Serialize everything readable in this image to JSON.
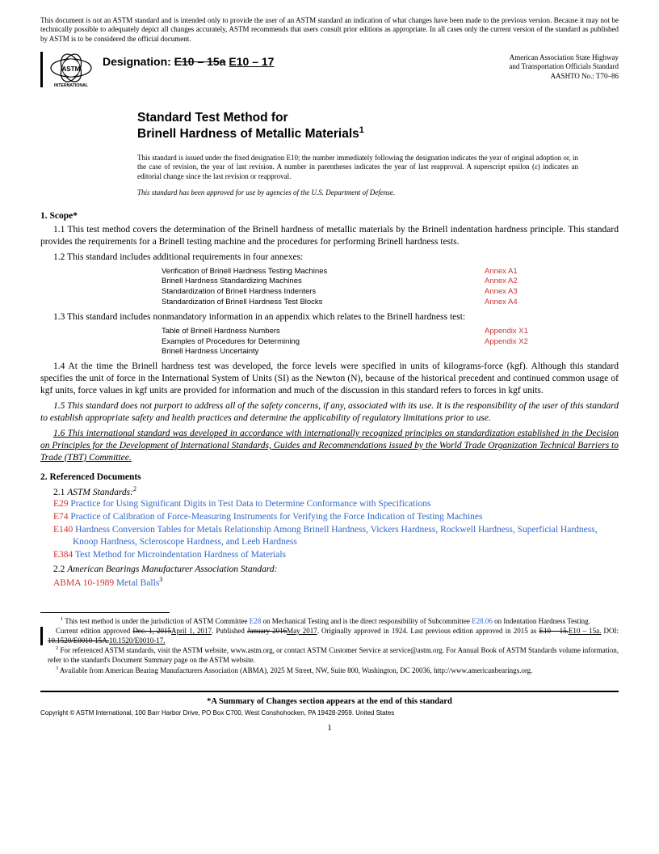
{
  "disclaimer": "This document is not an ASTM standard and is intended only to provide the user of an ASTM standard an indication of what changes have been made to the previous version. Because it may not be technically possible to adequately depict all changes accurately, ASTM recommends that users consult prior editions as appropriate. In all cases only the current version of the standard as published by ASTM is to be considered the official document.",
  "logo_text": "ASTM INTERNATIONAL",
  "designation_label": "Designation:",
  "designation_old": "E10 – 15a",
  "designation_new": "E10 – 17",
  "header_right_l1": "American Association State Highway",
  "header_right_l2": "and Transportation Officials Standard",
  "header_right_l3": "AASHTO No.: T70–86",
  "title_l1": "Standard Test Method for",
  "title_l2": "Brinell Hardness of Metallic Materials",
  "title_sup": "1",
  "issuance": "This standard is issued under the fixed designation E10; the number immediately following the designation indicates the year of original adoption or, in the case of revision, the year of last revision. A number in parentheses indicates the year of last reapproval. A superscript epsilon (ε) indicates an editorial change since the last revision or reapproval.",
  "approval": "This standard has been approved for use by agencies of the U.S. Department of Defense.",
  "s1_head": "1.  Scope*",
  "s1_1": "1.1 This test method covers the determination of the Brinell hardness of metallic materials by the Brinell indentation hardness principle. This standard provides the requirements for a Brinell testing machine and the procedures for performing Brinell hardness tests.",
  "s1_2": "1.2 This standard includes additional requirements in four annexes:",
  "annexes": [
    {
      "label": "Verification of Brinell Hardness Testing Machines",
      "link": "Annex A1"
    },
    {
      "label": "Brinell Hardness Standardizing Machines",
      "link": "Annex A2"
    },
    {
      "label": "Standardization of Brinell Hardness Indenters",
      "link": "Annex A3"
    },
    {
      "label": "Standardization of Brinell Hardness Test Blocks",
      "link": "Annex A4"
    }
  ],
  "s1_3": "1.3 This standard includes nonmandatory information in an appendix which relates to the Brinell hardness test:",
  "appendices": [
    {
      "label": "Table of Brinell Hardness Numbers",
      "link": "Appendix X1"
    },
    {
      "label": "Examples of Procedures for Determining Brinell Hardness Uncertainty",
      "link": "Appendix X2"
    }
  ],
  "s1_4": "1.4 At the time the Brinell hardness test was developed, the force levels were specified in units of kilograms-force (kgf). Although this standard specifies the unit of force in the International System of Units (SI) as the Newton (N), because of the historical precedent and continued common usage of kgf units, force values in kgf units are provided for information and much of the discussion in this standard refers to forces in kgf units.",
  "s1_5": "1.5 This standard does not purport to address all of the safety concerns, if any, associated with its use. It is the responsibility of the user of this standard to establish appropriate safety and health practices and determine the applicability of regulatory limitations prior to use.",
  "s1_6": "1.6 This international standard was developed in accordance with internationally recognized principles on standardization established in the Decision on Principles for the Development of International Standards, Guides and Recommendations issued by the World Trade Organization Technical Barriers to Trade (TBT) Committee.",
  "s2_head": "2.  Referenced Documents",
  "s2_1_label": "2.1 ",
  "s2_1_text": "ASTM Standards:",
  "s2_1_sup": "2",
  "refs": [
    {
      "code": "E29",
      "text": "Practice for Using Significant Digits in Test Data to Determine Conformance with Specifications"
    },
    {
      "code": "E74",
      "text": "Practice of Calibration of Force-Measuring Instruments for Verifying the Force Indication of Testing Machines"
    },
    {
      "code": "E140",
      "text": "Hardness Conversion Tables for Metals Relationship Among Brinell Hardness, Vickers Hardness, Rockwell Hardness, Superficial Hardness, Knoop Hardness, Scleroscope Hardness, and Leeb Hardness"
    },
    {
      "code": "E384",
      "text": "Test Method for Microindentation Hardness of Materials"
    }
  ],
  "s2_2_label": "2.2 ",
  "s2_2_text": "American Bearings Manufacturer Association Standard:",
  "abma_code": "ABMA 10-1989",
  "abma_text": "Metal Balls",
  "abma_sup": "3",
  "fn1_a": " This test method is under the jurisdiction of ASTM Committee ",
  "fn1_link1": "E28",
  "fn1_b": " on Mechanical Testing and is the direct responsibility of Subcommittee ",
  "fn1_link2": "E28.06",
  "fn1_c": " on Indentation Hardness Testing.",
  "fn1_d_pre": "Current edition approved ",
  "fn1_d_s1": "Dec. 1, 2015",
  "fn1_d_u1": "April 1, 2017",
  "fn1_d_mid": ". Published ",
  "fn1_d_s2": "January 2016",
  "fn1_d_u2": "May 2017",
  "fn1_d_post": ". Originally approved in 1924. Last previous edition approved in 2015 as ",
  "fn1_d_s3": "E10 – 15.",
  "fn1_d_u3": "E10 – 15a.",
  "fn1_d_doi": " DOI: ",
  "fn1_d_s4": "10.1520/E0010-15A.",
  "fn1_d_u4": "10.1520/E0010-17.",
  "fn2": " For referenced ASTM standards, visit the ASTM website, www.astm.org, or contact ASTM Customer Service at service@astm.org. For Annual Book of ASTM Standards volume information, refer to the standard's Document Summary page on the ASTM website.",
  "fn3": " Available from American Bearing Manufacturers Association (ABMA), 2025 M Street, NW, Suite 800, Washington, DC 20036, http://www.americanbearings.org.",
  "summary": "*A Summary of Changes section appears at the end of this standard",
  "copyright": "Copyright © ASTM International, 100 Barr Harbor Drive, PO Box C700, West Conshohocken, PA 19428-2959. United States",
  "page": "1"
}
